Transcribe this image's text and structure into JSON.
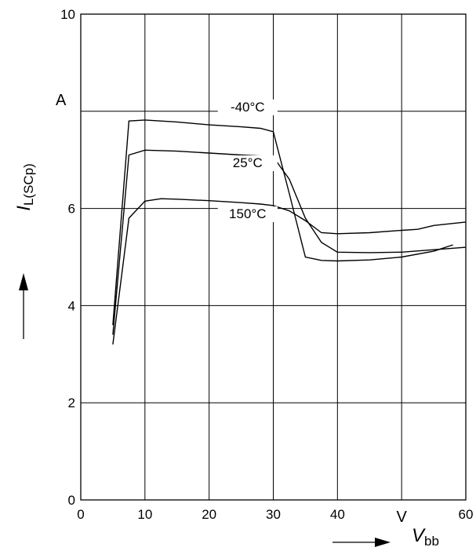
{
  "chart_data": {
    "type": "line",
    "xlim": [
      0,
      60
    ],
    "ylim": [
      0,
      10
    ],
    "x_ticks": [
      0,
      10,
      20,
      30,
      40,
      60
    ],
    "x_unit_label": "V",
    "y_ticks": [
      0,
      2,
      4,
      6,
      10
    ],
    "y_unit_label": "A",
    "grid": true,
    "xlabel": {
      "main": "V",
      "sub": "bb"
    },
    "ylabel": {
      "main": "I",
      "sub": "L(SCp)"
    },
    "series": [
      {
        "name": "-40°C",
        "label_at": [
          26,
          8.0
        ],
        "points": [
          [
            5,
            3.6
          ],
          [
            7.5,
            7.8
          ],
          [
            10,
            7.82
          ],
          [
            15,
            7.78
          ],
          [
            20,
            7.72
          ],
          [
            25,
            7.68
          ],
          [
            28,
            7.65
          ],
          [
            30,
            7.58
          ],
          [
            32.5,
            6.3
          ],
          [
            35,
            5.0
          ],
          [
            37.5,
            4.93
          ],
          [
            40,
            4.92
          ],
          [
            45,
            4.94
          ],
          [
            50,
            5.0
          ],
          [
            55,
            5.12
          ],
          [
            58,
            5.25
          ]
        ]
      },
      {
        "name": "25°C",
        "label_at": [
          26,
          6.85
        ],
        "points": [
          [
            5,
            3.4
          ],
          [
            7.5,
            7.1
          ],
          [
            10,
            7.2
          ],
          [
            15,
            7.18
          ],
          [
            20,
            7.14
          ],
          [
            25,
            7.1
          ],
          [
            28,
            7.08
          ],
          [
            30,
            7.06
          ],
          [
            32.5,
            6.6
          ],
          [
            35,
            5.8
          ],
          [
            37.5,
            5.3
          ],
          [
            40,
            5.1
          ],
          [
            45,
            5.09
          ],
          [
            50,
            5.1
          ],
          [
            55,
            5.15
          ],
          [
            60,
            5.2
          ]
        ]
      },
      {
        "name": "150°C",
        "label_at": [
          26,
          5.8
        ],
        "points": [
          [
            5,
            3.2
          ],
          [
            7.5,
            5.8
          ],
          [
            10,
            6.15
          ],
          [
            12.5,
            6.2
          ],
          [
            15,
            6.19
          ],
          [
            20,
            6.16
          ],
          [
            25,
            6.12
          ],
          [
            28,
            6.09
          ],
          [
            30,
            6.06
          ],
          [
            32.5,
            5.95
          ],
          [
            35,
            5.75
          ],
          [
            37.5,
            5.5
          ],
          [
            40,
            5.48
          ],
          [
            45,
            5.5
          ],
          [
            50,
            5.55
          ],
          [
            52.5,
            5.57
          ],
          [
            55,
            5.65
          ],
          [
            60,
            5.72
          ]
        ]
      }
    ]
  }
}
